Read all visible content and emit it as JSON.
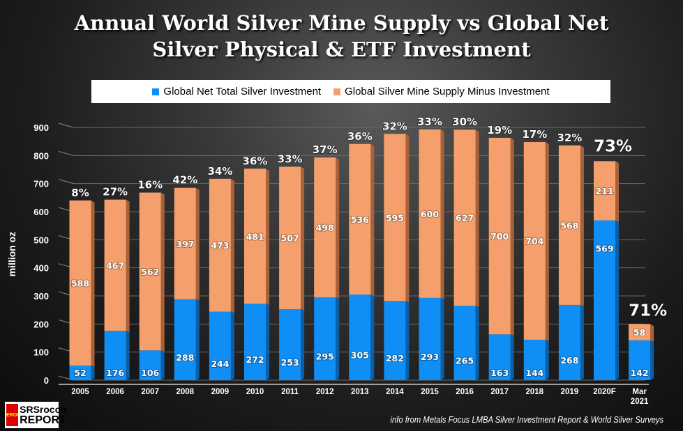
{
  "chart_data": {
    "type": "bar",
    "stacked": true,
    "title": "Annual World Silver Mine Supply vs Global Net Silver Physical & ETF Investment",
    "title_lines": [
      "Annual World Silver Mine Supply vs Global Net",
      "Silver Physical & ETF Investment"
    ],
    "ylabel": "million oz",
    "ylim": [
      0,
      900
    ],
    "yticks": [
      0,
      100,
      200,
      300,
      400,
      500,
      600,
      700,
      800,
      900
    ],
    "grid": true,
    "legend_position": "top",
    "categories": [
      "2005",
      "2006",
      "2007",
      "2008",
      "2009",
      "2010",
      "2011",
      "2012",
      "2013",
      "2014",
      "2015",
      "2016",
      "2017",
      "2018",
      "2019",
      "2020F",
      "Mar 2021"
    ],
    "series": [
      {
        "name": "Global Net Total Silver Investment",
        "color": "#0f8ef5",
        "values": [
          52,
          176,
          106,
          288,
          244,
          272,
          253,
          295,
          305,
          282,
          293,
          265,
          163,
          144,
          268,
          569,
          142
        ]
      },
      {
        "name": "Global Silver Mine Supply Minus Investment",
        "color": "#f5a06c",
        "values": [
          588,
          467,
          562,
          397,
          473,
          481,
          507,
          498,
          536,
          595,
          600,
          627,
          700,
          704,
          568,
          211,
          58
        ]
      }
    ],
    "percent_labels": [
      "8%",
      "27%",
      "16%",
      "42%",
      "34%",
      "36%",
      "33%",
      "37%",
      "36%",
      "32%",
      "33%",
      "30%",
      "19%",
      "17%",
      "32%",
      "73%",
      "71%"
    ]
  },
  "source": "info from Metals Focus LMBA Silver Investment Report & World Silver Surveys",
  "logo": {
    "badge": "EROI",
    "line1": "SRSrocco",
    "line2": "REPORT"
  }
}
